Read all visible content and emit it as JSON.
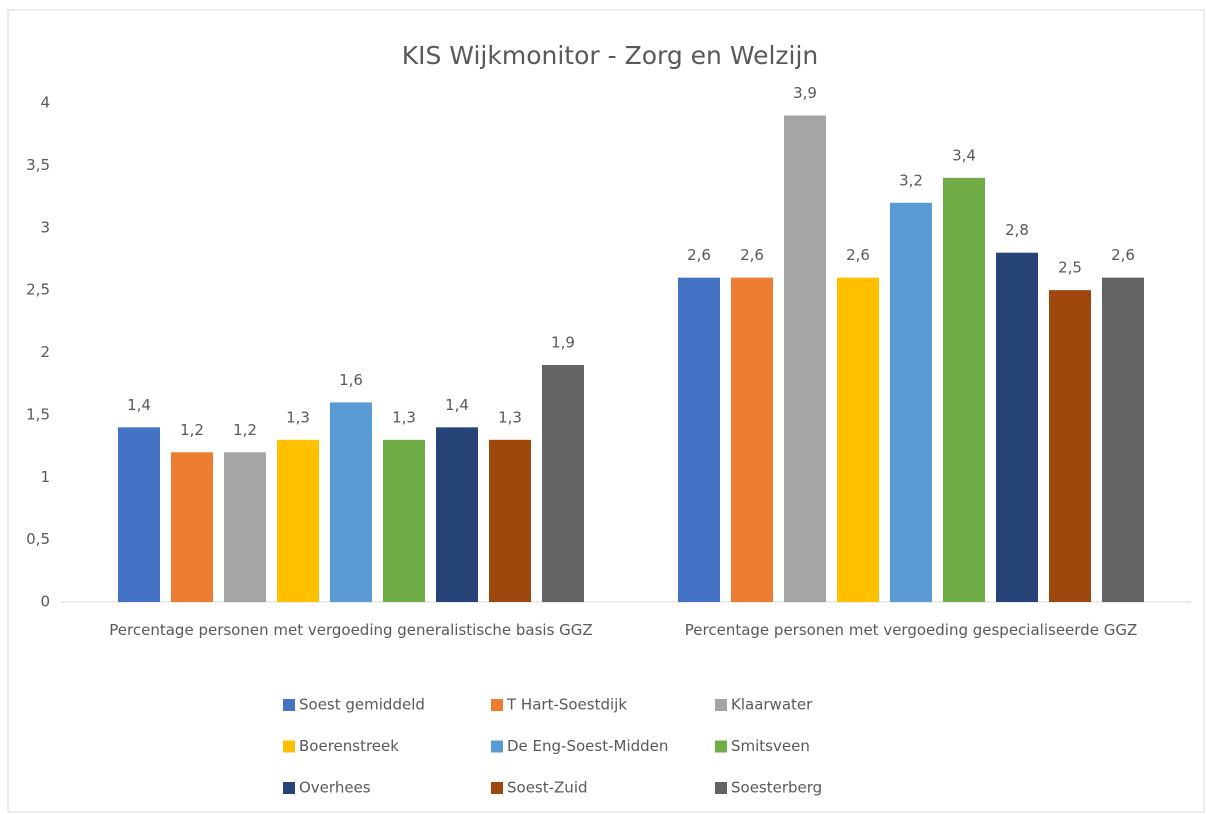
{
  "chart_data": {
    "type": "bar",
    "title": "KIS Wijkmonitor - Zorg en Welzijn",
    "categories": [
      "Percentage personen met vergoeding generalistische basis GGZ",
      "Percentage personen met vergoeding gespecialiseerde GGZ"
    ],
    "series": [
      {
        "name": "Soest gemiddeld",
        "color": "#4472c4",
        "values": [
          1.4,
          2.6
        ],
        "value_labels": [
          "1,4",
          "2,6"
        ]
      },
      {
        "name": "T Hart-Soestdijk",
        "color": "#ed7d31",
        "values": [
          1.2,
          2.6
        ],
        "value_labels": [
          "1,2",
          "2,6"
        ]
      },
      {
        "name": "Klaarwater",
        "color": "#a5a5a5",
        "values": [
          1.2,
          3.9
        ],
        "value_labels": [
          "1,2",
          "3,9"
        ]
      },
      {
        "name": "Boerenstreek",
        "color": "#ffc000",
        "values": [
          1.3,
          2.6
        ],
        "value_labels": [
          "1,3",
          "2,6"
        ]
      },
      {
        "name": "De Eng-Soest-Midden",
        "color": "#5b9bd5",
        "values": [
          1.6,
          3.2
        ],
        "value_labels": [
          "1,6",
          "3,2"
        ]
      },
      {
        "name": "Smitsveen",
        "color": "#70ad47",
        "values": [
          1.3,
          3.4
        ],
        "value_labels": [
          "1,3",
          "3,4"
        ]
      },
      {
        "name": "Overhees",
        "color": "#264478",
        "values": [
          1.4,
          2.8
        ],
        "value_labels": [
          "1,4",
          "2,8"
        ]
      },
      {
        "name": "Soest-Zuid",
        "color": "#9e480e",
        "values": [
          1.3,
          2.5
        ],
        "value_labels": [
          "1,3",
          "2,5"
        ]
      },
      {
        "name": "Soesterberg",
        "color": "#636363",
        "values": [
          1.9,
          2.6
        ],
        "value_labels": [
          "1,9",
          "2,6"
        ]
      }
    ],
    "ylim": [
      0,
      4
    ],
    "yticks": [
      0,
      {
        "value": 0.5,
        "label": "0,5"
      },
      1,
      {
        "value": 1.5,
        "label": "1,5"
      },
      2,
      {
        "value": 2.5,
        "label": "2,5"
      },
      3,
      {
        "value": 3.5,
        "label": "3,5"
      },
      4
    ],
    "legend": "bottom"
  }
}
